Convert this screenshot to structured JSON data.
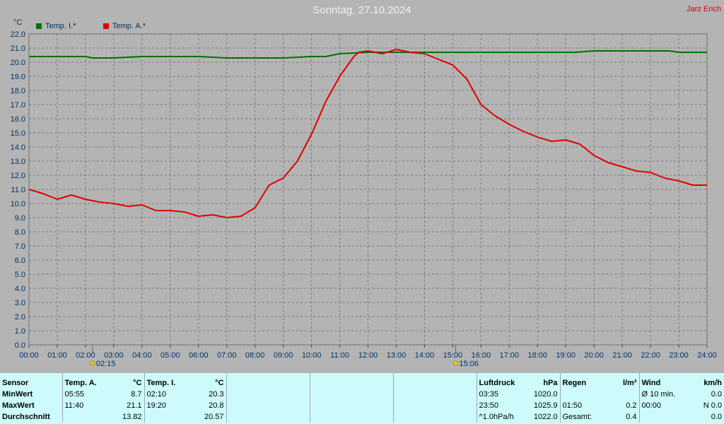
{
  "header": {
    "title": "Sonntag, 27.10.2024",
    "author": "Jarz Erich",
    "y_unit": "°C"
  },
  "chart_data": {
    "type": "line",
    "ylim": [
      0,
      22
    ],
    "xlim": [
      "00:00",
      "24:00"
    ],
    "y_ticks": [
      "0.0",
      "1.0",
      "2.0",
      "3.0",
      "4.0",
      "5.0",
      "6.0",
      "7.0",
      "8.0",
      "9.0",
      "10.0",
      "11.0",
      "12.0",
      "13.0",
      "14.0",
      "15.0",
      "16.0",
      "17.0",
      "18.0",
      "19.0",
      "20.0",
      "21.0",
      "22.0"
    ],
    "x_ticks": [
      "00:00",
      "01:00",
      "02:00",
      "03:00",
      "04:00",
      "05:00",
      "06:00",
      "07:00",
      "08:00",
      "09:00",
      "10:00",
      "11:00",
      "12:00",
      "13:00",
      "14:00",
      "15:00",
      "16:00",
      "17:00",
      "18:00",
      "19:00",
      "20:00",
      "21:00",
      "22:00",
      "23:00",
      "24:00"
    ],
    "grid": true,
    "legend_position": "top-left",
    "series": [
      {
        "name": "Temp. I.*",
        "color": "#007000",
        "x": [
          "00:00",
          "01:00",
          "02:00",
          "02:15",
          "03:00",
          "04:00",
          "05:00",
          "06:00",
          "07:00",
          "08:00",
          "09:00",
          "10:00",
          "10:30",
          "11:00",
          "12:00",
          "13:00",
          "14:00",
          "15:00",
          "16:00",
          "17:00",
          "18:00",
          "19:00",
          "19:20",
          "20:00",
          "21:00",
          "22:00",
          "22:40",
          "23:00",
          "24:00"
        ],
        "y": [
          20.4,
          20.4,
          20.4,
          20.3,
          20.3,
          20.4,
          20.4,
          20.4,
          20.3,
          20.3,
          20.3,
          20.4,
          20.4,
          20.6,
          20.7,
          20.7,
          20.7,
          20.7,
          20.7,
          20.7,
          20.7,
          20.7,
          20.7,
          20.8,
          20.8,
          20.8,
          20.8,
          20.7,
          20.7
        ]
      },
      {
        "name": "Temp. A.*",
        "color": "#e00000",
        "x": [
          "00:00",
          "00:30",
          "01:00",
          "01:30",
          "02:00",
          "02:30",
          "03:00",
          "03:30",
          "04:00",
          "04:30",
          "05:00",
          "05:30",
          "06:00",
          "06:30",
          "07:00",
          "07:30",
          "08:00",
          "08:30",
          "09:00",
          "09:30",
          "10:00",
          "10:30",
          "11:00",
          "11:30",
          "11:40",
          "12:00",
          "12:30",
          "13:00",
          "13:30",
          "14:00",
          "14:30",
          "15:00",
          "15:30",
          "16:00",
          "16:30",
          "17:00",
          "17:30",
          "18:00",
          "18:30",
          "19:00",
          "19:30",
          "20:00",
          "20:30",
          "21:00",
          "21:30",
          "22:00",
          "22:30",
          "23:00",
          "23:30",
          "24:00"
        ],
        "y": [
          11.0,
          10.7,
          10.3,
          10.6,
          10.3,
          10.1,
          10.0,
          9.8,
          9.9,
          9.5,
          9.5,
          9.4,
          9.1,
          9.2,
          9.0,
          9.1,
          9.7,
          11.3,
          11.8,
          13.0,
          14.9,
          17.2,
          19.0,
          20.4,
          20.7,
          20.8,
          20.6,
          20.9,
          20.7,
          20.6,
          20.2,
          19.8,
          18.8,
          17.0,
          16.2,
          15.6,
          15.1,
          14.7,
          14.4,
          14.5,
          14.2,
          13.4,
          12.9,
          12.6,
          12.3,
          12.2,
          11.8,
          11.6,
          11.3,
          11.3
        ]
      }
    ],
    "annotations": [
      {
        "label": "02:15",
        "x": "02:15",
        "icon": "sunrise-icon"
      },
      {
        "label": "15:06",
        "x": "15:06",
        "icon": "sunset-icon"
      }
    ]
  },
  "stats_table": {
    "rows": [
      [
        "Sensor",
        "Temp. A.",
        "",
        "°C",
        "Temp. I.",
        "",
        "°C",
        "",
        "",
        "",
        "",
        "Luftdruck",
        "",
        "hPa",
        "Regen",
        "",
        "l/m²",
        "Wind",
        "",
        "km/h"
      ],
      [
        "MinWert",
        "05:55",
        "",
        "8.7",
        "02:10",
        "",
        "20.3",
        "",
        "",
        "",
        "",
        "03:35",
        "",
        "1020.0",
        "",
        "",
        "",
        "Ø 10 min.",
        "",
        "0.0"
      ],
      [
        "MaxWert",
        "11:40",
        "",
        "21.1",
        "19:20",
        "",
        "20.8",
        "",
        "",
        "",
        "",
        "23:50",
        "",
        "1025.9",
        "01:50",
        "",
        "0.2",
        "00:00",
        "",
        "N 0.0"
      ],
      [
        "Durchschnitt",
        "",
        "",
        "13.82",
        "",
        "",
        "20.57",
        "",
        "",
        "",
        "",
        "^1.0hPa/h",
        "",
        "1022.0",
        "Gesamt:",
        "",
        "0.4",
        "",
        "",
        "0.0"
      ]
    ]
  }
}
